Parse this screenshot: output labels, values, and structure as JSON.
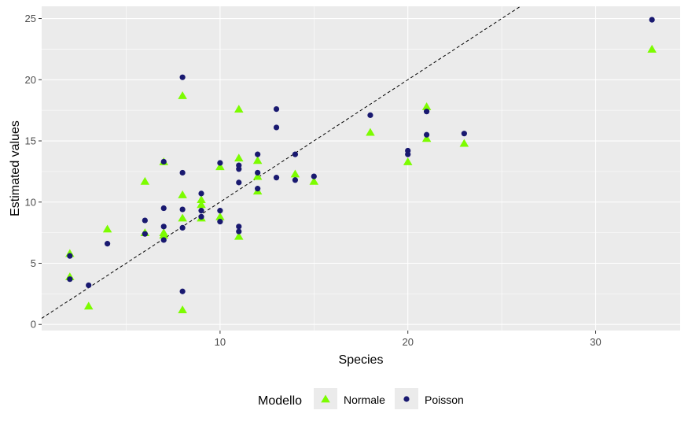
{
  "chart_data": {
    "type": "scatter",
    "xlabel": "Species",
    "ylabel": "Estimated values",
    "xlim": [
      0.5,
      34.5
    ],
    "ylim": [
      -0.5,
      26
    ],
    "xticks": [
      10,
      20,
      30
    ],
    "yticks": [
      0,
      5,
      10,
      15,
      20,
      25
    ],
    "grid": true,
    "legend_position": "bottom",
    "legend_title": "Modello",
    "reference_line": {
      "style": "dashed",
      "slope": 1,
      "intercept": 0
    },
    "colors": {
      "Normale": "#7cfc00",
      "Poisson": "#191970",
      "panel": "#ebebeb",
      "grid": "#ffffff"
    },
    "series": [
      {
        "name": "Normale",
        "marker": "triangle",
        "points": [
          [
            2,
            5.8
          ],
          [
            2,
            3.9
          ],
          [
            3,
            1.5
          ],
          [
            4,
            7.8
          ],
          [
            6,
            11.7
          ],
          [
            6,
            7.5
          ],
          [
            7,
            13.3
          ],
          [
            7,
            7.5
          ],
          [
            7,
            7.3
          ],
          [
            8,
            18.7
          ],
          [
            8,
            10.6
          ],
          [
            8,
            8.7
          ],
          [
            8,
            1.2
          ],
          [
            9,
            10.2
          ],
          [
            9,
            9.8
          ],
          [
            9,
            8.7
          ],
          [
            10,
            12.9
          ],
          [
            10,
            8.8
          ],
          [
            11,
            17.6
          ],
          [
            11,
            13.6
          ],
          [
            11,
            7.2
          ],
          [
            12,
            13.4
          ],
          [
            12,
            12.1
          ],
          [
            12,
            10.9
          ],
          [
            14,
            12.3
          ],
          [
            15,
            11.7
          ],
          [
            18,
            15.7
          ],
          [
            20,
            13.3
          ],
          [
            21,
            17.8
          ],
          [
            21,
            15.2
          ],
          [
            23,
            14.8
          ],
          [
            33,
            22.5
          ]
        ]
      },
      {
        "name": "Poisson",
        "marker": "circle",
        "points": [
          [
            2,
            5.6
          ],
          [
            2,
            3.7
          ],
          [
            3,
            3.2
          ],
          [
            4,
            6.6
          ],
          [
            6,
            8.5
          ],
          [
            6,
            7.4
          ],
          [
            7,
            13.3
          ],
          [
            7,
            9.5
          ],
          [
            7,
            8.0
          ],
          [
            7,
            6.9
          ],
          [
            8,
            20.2
          ],
          [
            8,
            12.4
          ],
          [
            8,
            9.4
          ],
          [
            8,
            7.9
          ],
          [
            8,
            2.7
          ],
          [
            9,
            10.7
          ],
          [
            9,
            9.3
          ],
          [
            9,
            8.8
          ],
          [
            10,
            13.2
          ],
          [
            10,
            9.3
          ],
          [
            10,
            8.4
          ],
          [
            11,
            13.0
          ],
          [
            11,
            12.7
          ],
          [
            11,
            11.6
          ],
          [
            11,
            8.0
          ],
          [
            11,
            7.6
          ],
          [
            12,
            13.9
          ],
          [
            12,
            12.4
          ],
          [
            12,
            11.1
          ],
          [
            13,
            17.6
          ],
          [
            13,
            16.1
          ],
          [
            13,
            12.0
          ],
          [
            14,
            13.9
          ],
          [
            14,
            11.8
          ],
          [
            15,
            12.1
          ],
          [
            18,
            17.1
          ],
          [
            20,
            14.2
          ],
          [
            20,
            13.9
          ],
          [
            21,
            17.4
          ],
          [
            21,
            15.5
          ],
          [
            23,
            15.6
          ],
          [
            33,
            24.9
          ]
        ]
      }
    ]
  }
}
